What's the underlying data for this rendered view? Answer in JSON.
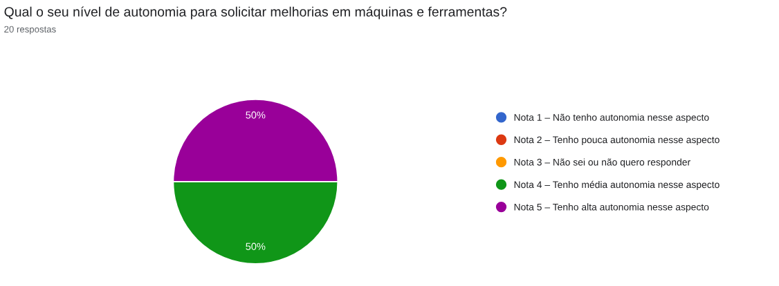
{
  "chart_data": {
    "type": "pie",
    "title": "Qual o seu nível de autonomia para solicitar melhorias em máquinas e ferramentas?",
    "subtitle": "20 respostas",
    "categories": [
      "Nota 1 – Não tenho autonomia nesse aspecto",
      "Nota 2 – Tenho pouca autonomia nesse aspecto",
      "Nota 3 – Não sei ou não quero responder",
      "Nota 4 – Tenho média autonomia nesse aspecto",
      "Nota 5 – Tenho alta autonomia nesse aspecto"
    ],
    "values": [
      0,
      0,
      0,
      50,
      50
    ],
    "colors": [
      "#3366cc",
      "#dc3912",
      "#ff9900",
      "#109618",
      "#990099"
    ],
    "value_labels": [
      null,
      null,
      null,
      "50%",
      "50%"
    ],
    "legend": "right"
  }
}
